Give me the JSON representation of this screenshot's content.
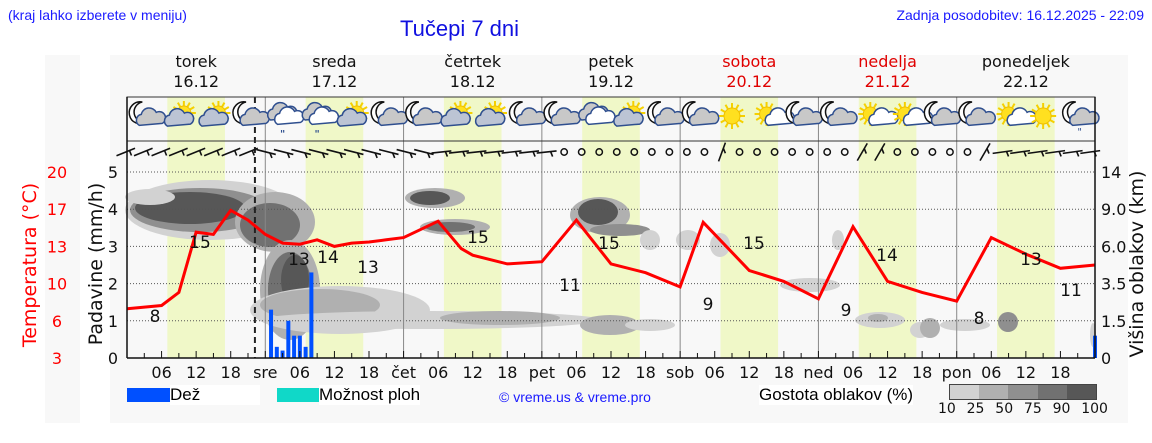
{
  "header": {
    "hint": "(kraj lahko izberete v meniju)",
    "title": "Tučepi 7 dni",
    "updated": "Zadnja posodobitev: 16.12.2025 - 22:09"
  },
  "days": [
    {
      "name": "torek",
      "date": "16.12",
      "weekend": false
    },
    {
      "name": "sreda",
      "date": "17.12",
      "weekend": false
    },
    {
      "name": "četrtek",
      "date": "18.12",
      "weekend": false
    },
    {
      "name": "petek",
      "date": "19.12",
      "weekend": false
    },
    {
      "name": "sobota",
      "date": "20.12",
      "weekend": true
    },
    {
      "name": "nedelja",
      "date": "21.12",
      "weekend": true
    },
    {
      "name": "ponedeljek",
      "date": "22.12",
      "weekend": false
    }
  ],
  "axes": {
    "left_temp_label": "Temperatura (°C)",
    "left_temp_ticks": [
      "20",
      "17",
      "13",
      "10",
      "6",
      "3"
    ],
    "left_precip_label": "Padavine (mm/h)",
    "left_precip_ticks": [
      "5",
      "4",
      "3",
      "2",
      "1",
      "0"
    ],
    "right_label": "Višina oblakov (km)",
    "right_ticks": [
      "14",
      "9.0",
      "6.0",
      "3.5",
      "1.5",
      "0"
    ],
    "x_ticks": [
      "06",
      "12",
      "18",
      "sre",
      "06",
      "12",
      "18",
      "čet",
      "06",
      "12",
      "18",
      "pet",
      "06",
      "12",
      "18",
      "sob",
      "06",
      "12",
      "18",
      "ned",
      "06",
      "12",
      "18",
      "pon",
      "06",
      "12",
      "18"
    ]
  },
  "legend": {
    "rain_label": "Dež",
    "rain_color": "#0050ff",
    "storm_label": "Možnost ploh",
    "storm_color": "#10d8c8",
    "credit": "© vreme.us & vreme.pro",
    "cloud_label": "Gostota oblakov (%)",
    "cloud_scale": [
      "10",
      "25",
      "50",
      "75",
      "90",
      "100"
    ]
  },
  "colors": {
    "temperature_line": "#ff0000",
    "daylight_band": "#f0f8c8",
    "weekend_text": "#e00000",
    "link_blue": "#1a1aff"
  },
  "weather_icons": [
    "moon-cloud",
    "sun-cloud",
    "sun-cloud",
    "moon-cloud",
    "cloud-drizzle",
    "cloud-drizzle",
    "sun-cloud",
    "moon-cloud",
    "moon-cloud",
    "sun-cloud",
    "sun-cloud",
    "moon-cloud",
    "moon-cloud",
    "cloud",
    "sun-cloud",
    "moon-cloud",
    "moon-cloud",
    "sun",
    "sun-small-cloud",
    "moon-cloud",
    "moon-cloud",
    "sun-small-cloud",
    "sun-small-cloud",
    "moon-cloud",
    "moon-cloud",
    "sun-small-cloud",
    "sun",
    "moon-cloud-drizzle"
  ],
  "chart_data": {
    "type": "line",
    "title": "Tučepi 7 dni",
    "xlabel": "",
    "ylabel": "Temperatura (°C)",
    "x_range": [
      "16.12 00:00",
      "22.12 24:00"
    ],
    "series": [
      {
        "name": "Temperatura (°C)",
        "x_hours": [
          0,
          6,
          9,
          12,
          15,
          18,
          21,
          24,
          27,
          30,
          33,
          36,
          39,
          42,
          45,
          48,
          54,
          58,
          60,
          66,
          72,
          78,
          84,
          90,
          96,
          100,
          108,
          114,
          120,
          126,
          132,
          138,
          144,
          150,
          156,
          162,
          168
        ],
        "values": [
          7.5,
          7.8,
          9,
          14.5,
          14.3,
          16.5,
          15.6,
          14.3,
          13.5,
          13.4,
          13.8,
          13.2,
          13.5,
          13.6,
          13.8,
          14,
          15.5,
          13,
          12.4,
          11.6,
          11.8,
          15.6,
          11.6,
          10.8,
          9.5,
          15.4,
          11,
          10,
          8.4,
          15,
          10,
          9,
          8.2,
          14,
          12.5,
          11.2,
          11.5
        ],
        "labels": [
          {
            "text": "8",
            "hour": 4
          },
          {
            "text": "15",
            "hour": 10
          },
          {
            "text": "13",
            "hour": 29
          },
          {
            "text": "14",
            "hour": 33
          },
          {
            "text": "13",
            "hour": 40
          },
          {
            "text": "15",
            "hour": 58
          },
          {
            "text": "11",
            "hour": 79
          },
          {
            "text": "15",
            "hour": 83
          },
          {
            "text": "9",
            "hour": 100
          },
          {
            "text": "15",
            "hour": 107
          },
          {
            "text": "9",
            "hour": 123
          },
          {
            "text": "14",
            "hour": 132
          },
          {
            "text": "8",
            "hour": 148
          },
          {
            "text": "13",
            "hour": 155
          },
          {
            "text": "11",
            "hour": 164
          }
        ]
      },
      {
        "name": "Dež (mm/h)",
        "type": "bar",
        "x_hours": [
          25,
          26,
          27,
          28,
          29,
          30,
          31,
          32
        ],
        "values": [
          1.3,
          0.3,
          0.2,
          1.0,
          0.6,
          0.6,
          0.3,
          2.3
        ]
      },
      {
        "name": "Dež (mm/h)",
        "type": "bar",
        "x_hours": [
          168
        ],
        "values": [
          0.6
        ]
      }
    ],
    "precip_ylim": [
      0,
      5
    ],
    "temp_ylim": [
      3,
      20
    ],
    "cloud_height_km_ticks": [
      0,
      1.5,
      3.5,
      6.0,
      9.0,
      14
    ],
    "now_marker_hour": 22.2,
    "grid": true
  }
}
